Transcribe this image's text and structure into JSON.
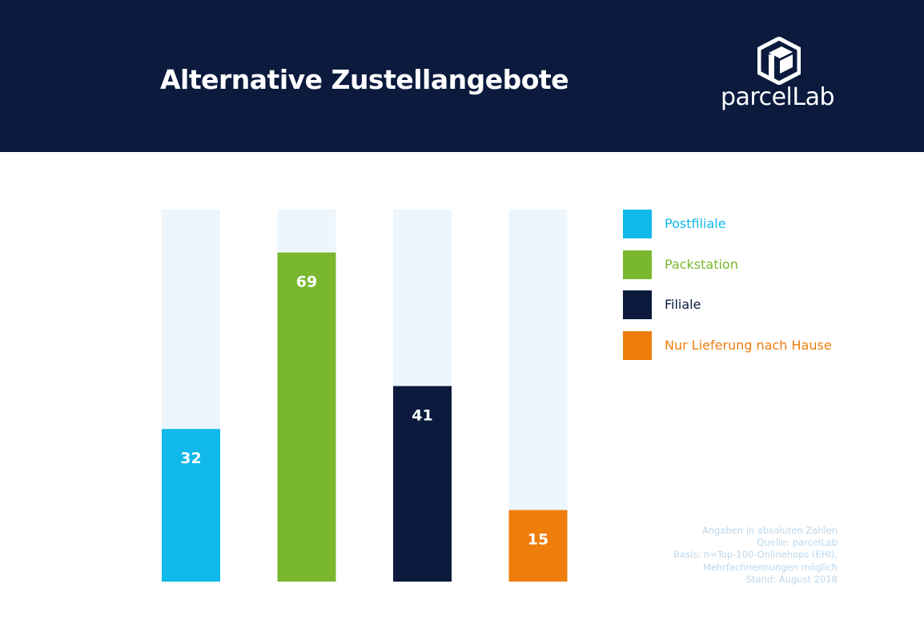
{
  "header": {
    "title": "Alternative Zustellangebote",
    "logo_text": "parcelLab",
    "logo_icon": "parcellab-logo-icon"
  },
  "colors": {
    "header_bg": "#0b1a3d",
    "track": "#edf6fc",
    "note": "#bcd7ec"
  },
  "chart_data": {
    "type": "bar",
    "categories": [
      "Postfiliale",
      "Packstation",
      "Filiale",
      "Nur Lieferung nach Hause"
    ],
    "values": [
      32,
      69,
      41,
      15
    ],
    "colors": [
      "#11b8ea",
      "#79b72e",
      "#0b1a3d",
      "#ef7d0c"
    ],
    "ylim": [
      0,
      78
    ],
    "grid": false,
    "legend": "right",
    "title": "",
    "xlabel": "",
    "ylabel": ""
  },
  "legend": {
    "items": [
      {
        "label": "Postfiliale",
        "color": "#11b8ea"
      },
      {
        "label": "Packstation",
        "color": "#79b72e"
      },
      {
        "label": "Filiale",
        "color": "#0b1a3d"
      },
      {
        "label": "Nur Lieferung nach Hause",
        "color": "#ef7d0c"
      }
    ]
  },
  "note": {
    "lines": [
      "Angaben in absoluten Zahlen",
      "Quelle: parcelLab",
      "Basis: n=Top-100-Onlinehops (EHI),",
      "Mehrfachnennungen möglich",
      "Stand: August 2018"
    ]
  }
}
